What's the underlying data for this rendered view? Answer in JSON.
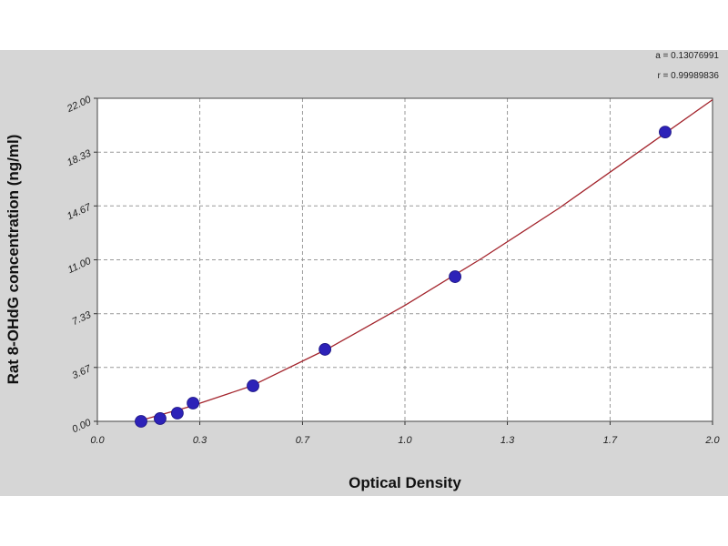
{
  "chart_data": {
    "type": "scatter",
    "x_label": "Optical Density",
    "y_label": "Rat 8-OHdG concentration (ng/ml)",
    "annotations": [
      "a = 0.13076991",
      "r = 0.99989836"
    ],
    "xlim": [
      0,
      2
    ],
    "ylim": [
      0,
      22
    ],
    "xticks": [
      {
        "value": 0,
        "label": "0.0"
      },
      {
        "value": 0.333,
        "label": "0.3"
      },
      {
        "value": 0.667,
        "label": "0.7"
      },
      {
        "value": 1,
        "label": "1.0"
      },
      {
        "value": 1.333,
        "label": "1.3"
      },
      {
        "value": 1.667,
        "label": "1.7"
      },
      {
        "value": 2,
        "label": "2.0"
      }
    ],
    "yticks": [
      {
        "value": 0,
        "label": "0.00"
      },
      {
        "value": 3.67,
        "label": "3.67"
      },
      {
        "value": 7.33,
        "label": "7.33"
      },
      {
        "value": 11,
        "label": "11.00"
      },
      {
        "value": 14.67,
        "label": "14.67"
      },
      {
        "value": 18.33,
        "label": "18.33"
      },
      {
        "value": 22,
        "label": "22.00"
      }
    ],
    "grid": true,
    "point_color": "#2d22b8",
    "x": [
      0.142,
      0.204,
      0.26,
      0.311,
      0.506,
      0.74,
      1.163,
      1.846
    ],
    "values": [
      0,
      0.19,
      0.56,
      1.24,
      2.42,
      4.9,
      9.85,
      19.7
    ],
    "fit_curve": {
      "color": "#a3242c",
      "x": [
        0.13,
        0.3,
        0.5,
        0.75,
        1.0,
        1.25,
        1.5,
        1.75,
        2.0
      ],
      "values": [
        0,
        1.0,
        2.4,
        4.95,
        7.9,
        11.1,
        14.5,
        18.2,
        21.9
      ]
    }
  }
}
